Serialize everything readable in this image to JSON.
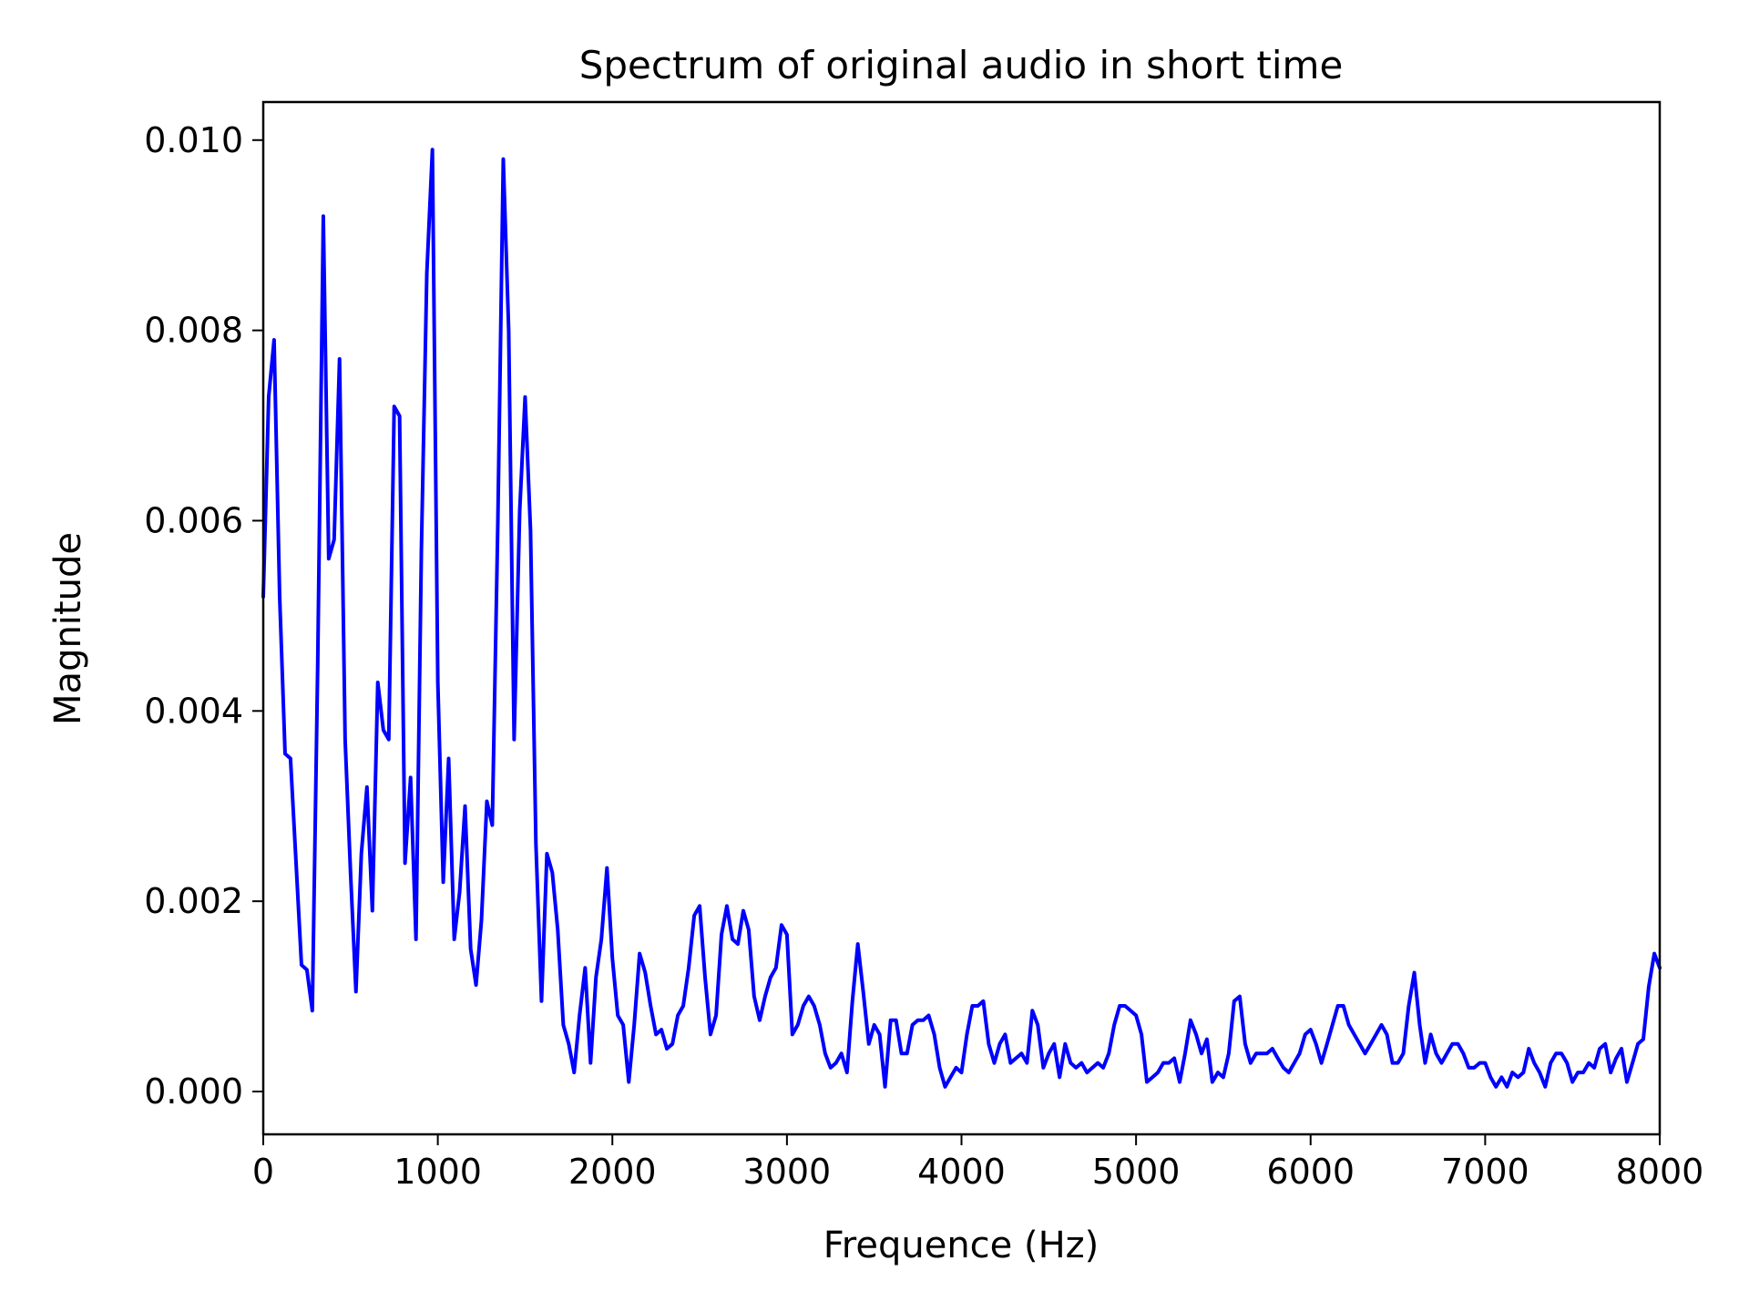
{
  "chart_data": {
    "type": "line",
    "title": "Spectrum of original audio in short time",
    "xlabel": "Frequence (Hz)",
    "ylabel": "Magnitude",
    "xlim": [
      0,
      8000
    ],
    "ylim": [
      -0.00045,
      0.0104
    ],
    "grid": false,
    "legend": "none",
    "x_ticks": [
      0,
      1000,
      2000,
      3000,
      4000,
      5000,
      6000,
      7000,
      8000
    ],
    "x_tick_labels": [
      "0",
      "1000",
      "2000",
      "3000",
      "4000",
      "5000",
      "6000",
      "7000",
      "8000"
    ],
    "y_ticks": [
      0,
      0.002,
      0.004,
      0.006,
      0.008,
      0.01
    ],
    "y_tick_labels": [
      "0.000",
      "0.002",
      "0.004",
      "0.006",
      "0.008",
      "0.010"
    ],
    "series": [
      {
        "color": "#0000ff",
        "x": [
          0,
          31,
          62,
          94,
          125,
          156,
          188,
          219,
          250,
          281,
          312,
          344,
          375,
          406,
          437,
          469,
          500,
          531,
          562,
          594,
          625,
          656,
          688,
          719,
          750,
          781,
          812,
          844,
          875,
          906,
          937,
          969,
          1000,
          1031,
          1062,
          1094,
          1125,
          1156,
          1188,
          1219,
          1250,
          1281,
          1312,
          1344,
          1375,
          1406,
          1437,
          1469,
          1500,
          1531,
          1562,
          1594,
          1625,
          1656,
          1687,
          1719,
          1750,
          1781,
          1812,
          1844,
          1875,
          1906,
          1937,
          1969,
          2000,
          2031,
          2062,
          2094,
          2125,
          2156,
          2188,
          2219,
          2250,
          2281,
          2312,
          2344,
          2375,
          2406,
          2437,
          2469,
          2500,
          2531,
          2562,
          2594,
          2625,
          2656,
          2688,
          2719,
          2750,
          2781,
          2812,
          2844,
          2875,
          2906,
          2937,
          2969,
          3000,
          3031,
          3062,
          3094,
          3125,
          3156,
          3188,
          3219,
          3250,
          3281,
          3312,
          3344,
          3375,
          3406,
          3437,
          3469,
          3500,
          3531,
          3562,
          3594,
          3625,
          3656,
          3688,
          3719,
          3750,
          3781,
          3812,
          3844,
          3875,
          3906,
          3937,
          3969,
          4000,
          4031,
          4062,
          4094,
          4125,
          4156,
          4188,
          4219,
          4250,
          4281,
          4312,
          4344,
          4375,
          4406,
          4437,
          4469,
          4500,
          4531,
          4562,
          4594,
          4625,
          4656,
          4688,
          4719,
          4750,
          4781,
          4812,
          4844,
          4875,
          4906,
          4937,
          4969,
          5000,
          5031,
          5062,
          5094,
          5125,
          5156,
          5188,
          5219,
          5250,
          5281,
          5312,
          5344,
          5375,
          5406,
          5437,
          5469,
          5500,
          5531,
          5562,
          5594,
          5625,
          5656,
          5688,
          5719,
          5750,
          5781,
          5812,
          5844,
          5875,
          5906,
          5937,
          5969,
          6000,
          6031,
          6062,
          6094,
          6125,
          6156,
          6188,
          6219,
          6250,
          6281,
          6312,
          6344,
          6375,
          6406,
          6437,
          6469,
          6500,
          6531,
          6562,
          6594,
          6625,
          6656,
          6688,
          6719,
          6750,
          6781,
          6812,
          6844,
          6875,
          6906,
          6937,
          6969,
          7000,
          7031,
          7062,
          7094,
          7125,
          7156,
          7188,
          7219,
          7250,
          7281,
          7312,
          7344,
          7375,
          7406,
          7437,
          7469,
          7500,
          7531,
          7562,
          7594,
          7625,
          7656,
          7688,
          7719,
          7750,
          7781,
          7812,
          7844,
          7875,
          7906,
          7937,
          7969,
          8000
        ],
        "y": [
          0.0052,
          0.0073,
          0.0079,
          0.0052,
          0.00355,
          0.0035,
          0.0024,
          0.00133,
          0.00128,
          0.00085,
          0.0045,
          0.0092,
          0.0056,
          0.0058,
          0.0077,
          0.0037,
          0.0023,
          0.00105,
          0.0025,
          0.0032,
          0.0019,
          0.0043,
          0.0038,
          0.0037,
          0.0072,
          0.0071,
          0.0024,
          0.0033,
          0.0016,
          0.0057,
          0.0086,
          0.0099,
          0.0043,
          0.0022,
          0.0035,
          0.0016,
          0.0021,
          0.003,
          0.0015,
          0.00112,
          0.0018,
          0.00305,
          0.0028,
          0.006,
          0.0098,
          0.008,
          0.0037,
          0.0061,
          0.0073,
          0.0059,
          0.0026,
          0.00095,
          0.0025,
          0.0023,
          0.0017,
          0.0007,
          0.0005,
          0.0002,
          0.0008,
          0.0013,
          0.0003,
          0.0012,
          0.0016,
          0.00235,
          0.0014,
          0.0008,
          0.0007,
          0.0001,
          0.0007,
          0.00145,
          0.00125,
          0.0009,
          0.0006,
          0.00065,
          0.00045,
          0.0005,
          0.0008,
          0.0009,
          0.0013,
          0.00185,
          0.00195,
          0.0012,
          0.0006,
          0.0008,
          0.00165,
          0.00195,
          0.0016,
          0.00155,
          0.0019,
          0.0017,
          0.001,
          0.00075,
          0.001,
          0.0012,
          0.0013,
          0.00175,
          0.00165,
          0.0006,
          0.0007,
          0.0009,
          0.001,
          0.0009,
          0.0007,
          0.0004,
          0.00025,
          0.0003,
          0.0004,
          0.0002,
          0.00095,
          0.00155,
          0.00105,
          0.0005,
          0.0007,
          0.0006,
          5e-05,
          0.00075,
          0.00075,
          0.0004,
          0.0004,
          0.0007,
          0.00075,
          0.00075,
          0.0008,
          0.0006,
          0.00025,
          5e-05,
          0.00015,
          0.00025,
          0.0002,
          0.0006,
          0.0009,
          0.0009,
          0.00095,
          0.0005,
          0.0003,
          0.0005,
          0.0006,
          0.0003,
          0.00035,
          0.0004,
          0.0003,
          0.00085,
          0.0007,
          0.00025,
          0.0004,
          0.0005,
          0.00015,
          0.0005,
          0.0003,
          0.00025,
          0.0003,
          0.0002,
          0.00025,
          0.0003,
          0.00025,
          0.0004,
          0.0007,
          0.0009,
          0.0009,
          0.00085,
          0.0008,
          0.0006,
          0.0001,
          0.00015,
          0.0002,
          0.0003,
          0.0003,
          0.00035,
          0.0001,
          0.0004,
          0.00075,
          0.0006,
          0.0004,
          0.00055,
          0.0001,
          0.0002,
          0.00015,
          0.0004,
          0.00095,
          0.001,
          0.0005,
          0.0003,
          0.0004,
          0.0004,
          0.0004,
          0.00045,
          0.00035,
          0.00025,
          0.0002,
          0.0003,
          0.0004,
          0.0006,
          0.00065,
          0.0005,
          0.0003,
          0.0005,
          0.0007,
          0.0009,
          0.0009,
          0.0007,
          0.0006,
          0.0005,
          0.0004,
          0.0005,
          0.0006,
          0.0007,
          0.0006,
          0.0003,
          0.0003,
          0.0004,
          0.0009,
          0.00125,
          0.0007,
          0.0003,
          0.0006,
          0.0004,
          0.0003,
          0.0004,
          0.0005,
          0.0005,
          0.0004,
          0.00025,
          0.00025,
          0.0003,
          0.0003,
          0.00015,
          5e-05,
          0.00015,
          5e-05,
          0.0002,
          0.00015,
          0.0002,
          0.00045,
          0.0003,
          0.0002,
          5e-05,
          0.0003,
          0.0004,
          0.0004,
          0.0003,
          0.0001,
          0.0002,
          0.0002,
          0.0003,
          0.00025,
          0.00045,
          0.0005,
          0.0002,
          0.00035,
          0.00045,
          0.0001,
          0.0003,
          0.0005,
          0.00055,
          0.0011,
          0.00145,
          0.0013
        ]
      }
    ]
  }
}
